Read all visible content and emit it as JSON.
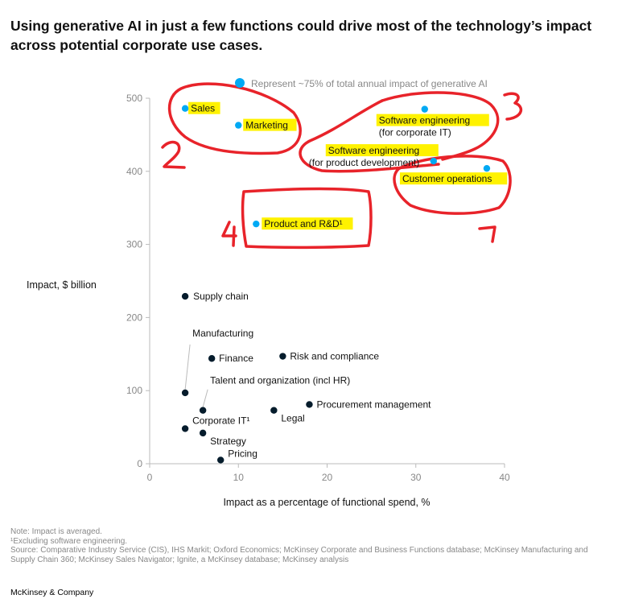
{
  "title": "Using generative AI in just a few functions could drive most of the technology’s impact across potential corporate use cases.",
  "legend_label": "Represent ~75% of total annual impact of generative AI",
  "colors": {
    "highlight_point": "#00A9F4",
    "point": "#051C2C",
    "annotation_red": "#E8232A",
    "highlight_fill": "#FFF200"
  },
  "chart_data": {
    "type": "scatter",
    "xlabel": "Impact as a percentage of functional spend, %",
    "ylabel": "Impact, $ billion",
    "xlim": [
      0,
      40
    ],
    "ylim": [
      0,
      500
    ],
    "xticks": [
      "0",
      "10",
      "20",
      "30",
      "40"
    ],
    "yticks": [
      "0",
      "100",
      "200",
      "300",
      "400",
      "500"
    ],
    "grid": false,
    "legend": "top",
    "points": [
      {
        "label": "Sales",
        "x": 4,
        "y": 486,
        "highlight": true
      },
      {
        "label": "Marketing",
        "x": 10,
        "y": 463,
        "highlight": true
      },
      {
        "label": "Software engineering",
        "label2": "(for corporate IT)",
        "x": 31,
        "y": 485,
        "highlight": true
      },
      {
        "label": "Software engineering",
        "label2": "(for product development)",
        "x": 32,
        "y": 414,
        "highlight": true
      },
      {
        "label": "Customer operations",
        "x": 38,
        "y": 404,
        "highlight": true
      },
      {
        "label": "Product and R&D¹",
        "x": 12,
        "y": 328,
        "highlight": true
      },
      {
        "label": "Supply chain",
        "x": 4,
        "y": 229,
        "highlight": false
      },
      {
        "label": "Manufacturing",
        "x": 4,
        "y": 97,
        "highlight": false
      },
      {
        "label": "Finance",
        "x": 7,
        "y": 144,
        "highlight": false
      },
      {
        "label": "Risk and compliance",
        "x": 15,
        "y": 147,
        "highlight": false
      },
      {
        "label": "Talent and organization (incl HR)",
        "x": 6,
        "y": 73,
        "highlight": false
      },
      {
        "label": "Procurement management",
        "x": 18,
        "y": 81,
        "highlight": false
      },
      {
        "label": "Legal",
        "x": 14,
        "y": 73,
        "highlight": false
      },
      {
        "label": "Corporate IT¹",
        "x": 4,
        "y": 48,
        "highlight": false
      },
      {
        "label": "Strategy",
        "x": 6,
        "y": 42,
        "highlight": false
      },
      {
        "label": "Pricing",
        "x": 8,
        "y": 5,
        "highlight": false
      }
    ],
    "annotations": [
      "1",
      "2",
      "3",
      "4"
    ]
  },
  "notes": [
    "Note: Impact is averaged.",
    "¹Excluding software engineering.",
    "Source: Comparative Industry Service (CIS), IHS Markit; Oxford Economics; McKinsey Corporate and Business Functions database; McKinsey Manufacturing and Supply Chain 360; McKinsey Sales Navigator; Ignite, a McKinsey database; McKinsey analysis"
  ],
  "brand": "McKinsey & Company"
}
